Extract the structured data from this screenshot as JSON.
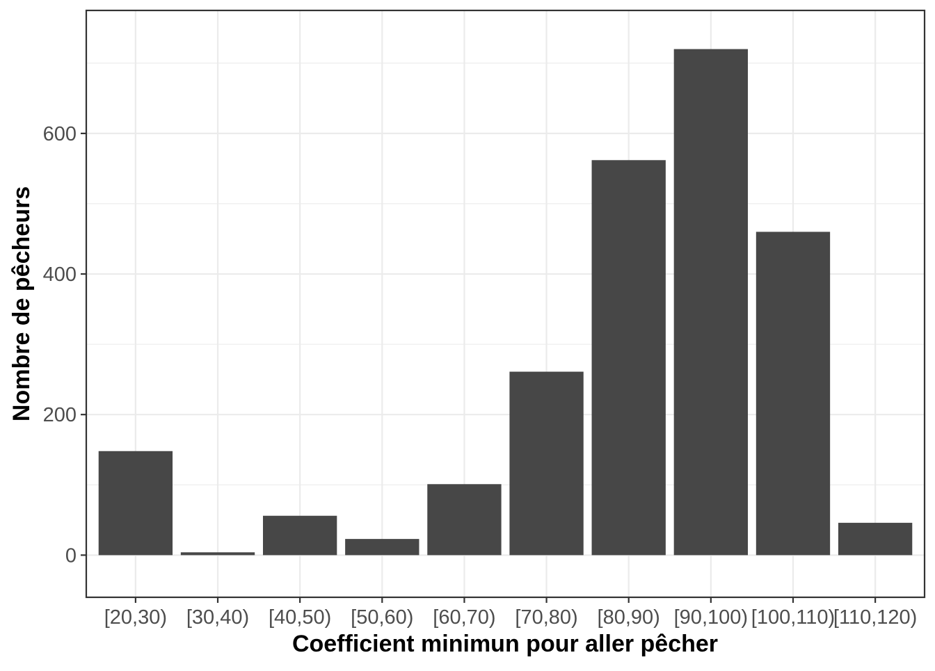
{
  "chart_data": {
    "type": "bar",
    "title": "",
    "xlabel": "Coefficient minimun pour aller pêcher",
    "ylabel": "Nombre de pêcheurs",
    "categories": [
      "[20,30)",
      "[30,40)",
      "[40,50)",
      "[50,60)",
      "[60,70)",
      "[70,80)",
      "[80,90)",
      "[90,100)",
      "[100,110)",
      "[110,120)"
    ],
    "values": [
      148,
      4,
      56,
      23,
      101,
      261,
      562,
      720,
      460,
      46
    ],
    "ylim": [
      -60,
      775
    ],
    "yticks": [
      0,
      200,
      400,
      600
    ],
    "ytick_labels": [
      "0",
      "200",
      "400",
      "600"
    ],
    "grid": true,
    "legend": "none",
    "colors": {
      "bar": "#474747",
      "grid": "#ebebeb",
      "panel_border": "#333333",
      "tick_text": "#4d4d4d",
      "axis_title": "#000000"
    }
  }
}
